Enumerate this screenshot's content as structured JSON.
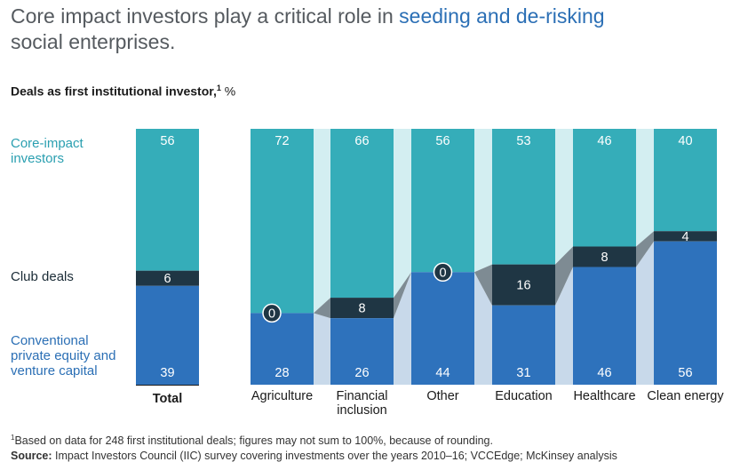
{
  "title": {
    "part1": "Core impact investors play a critical role in ",
    "highlight": "seeding and de-risking",
    "part2": "social enterprises."
  },
  "subtitle": {
    "label": "Deals as first institutional investor,",
    "sup": "1",
    "unit": " %"
  },
  "footnote": {
    "note": "Based on data for 248 first institutional deals; figures may not sum to 100%, because of rounding.",
    "note_sup": "1",
    "source_label": "Source:",
    "source_text": " Impact Investors Council (IIC) survey covering investments over the years 2010–16; VCCEdge; McKinsey analysis"
  },
  "colors": {
    "core": "#35adb9",
    "club": "#1f3644",
    "conventional": "#2e72bc",
    "core_band": "#d3eef1",
    "conv_band": "#c8d9ea",
    "club_band": "#7e8b93"
  },
  "chart_data": {
    "type": "bar",
    "stacked": true,
    "normalized": true,
    "categories": [
      "Total",
      "Agriculture",
      "Financial inclusion",
      "Other",
      "Education",
      "Healthcare",
      "Clean energy"
    ],
    "series": [
      {
        "name": "Core-impact investors",
        "values": [
          56,
          72,
          66,
          56,
          53,
          46,
          40
        ]
      },
      {
        "name": "Club deals",
        "values": [
          6,
          0,
          8,
          0,
          16,
          8,
          4
        ]
      },
      {
        "name": "Conventional private equity and venture capital",
        "values": [
          39,
          28,
          26,
          44,
          31,
          46,
          56
        ]
      }
    ],
    "series_labels": [
      [
        "Core-impact",
        "investors"
      ],
      [
        "Club deals"
      ],
      [
        "Conventional",
        "private equity and",
        "venture capital"
      ]
    ],
    "category_labels": [
      [
        "Total"
      ],
      [
        "Agriculture"
      ],
      [
        "Financial",
        "inclusion"
      ],
      [
        "Other"
      ],
      [
        "Education"
      ],
      [
        "Healthcare"
      ],
      [
        "Clean energy"
      ]
    ],
    "ylabel": "%",
    "ylim": [
      0,
      100
    ]
  }
}
